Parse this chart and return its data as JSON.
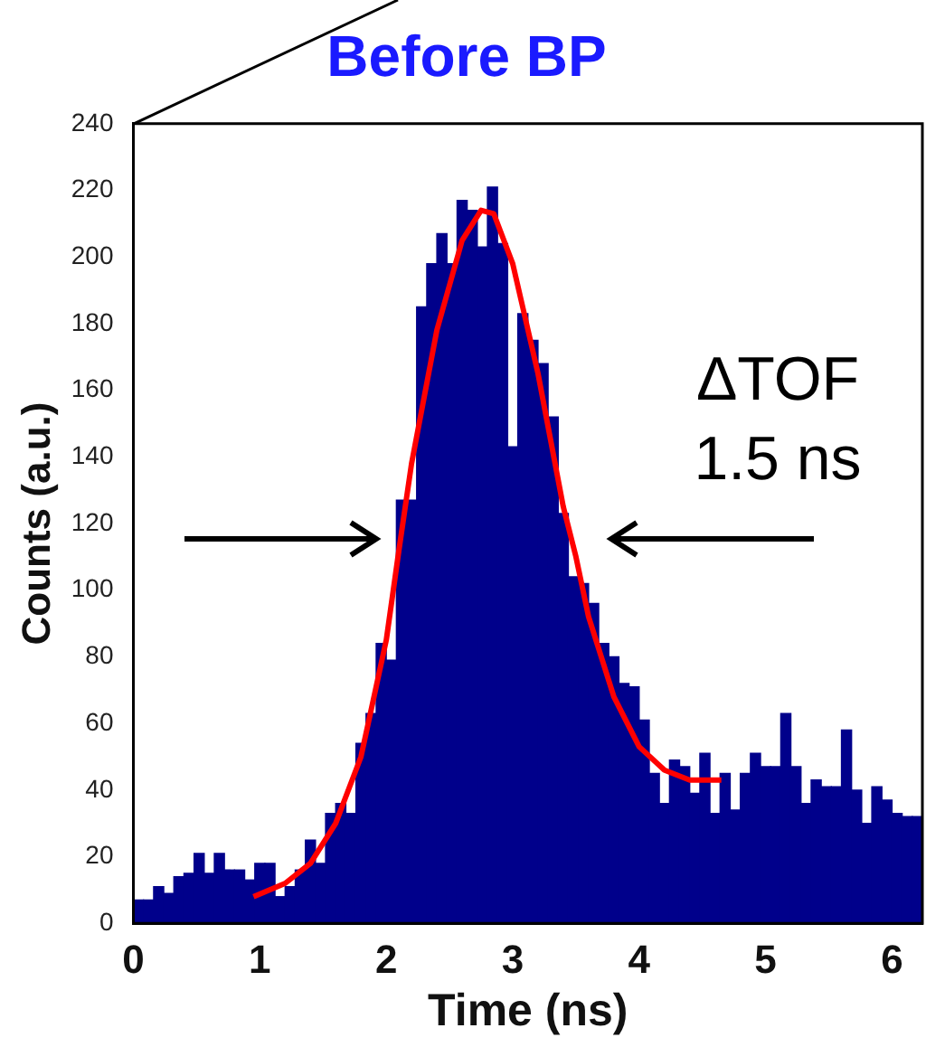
{
  "chart_data": {
    "type": "histogram",
    "title": "Before BP",
    "xlabel": "Time (ns)",
    "ylabel": "Counts (a.u.)",
    "bins": [
      0,
      0.08,
      0.16,
      0.24,
      0.32,
      0.4,
      0.48,
      0.56,
      0.64,
      0.72,
      0.8,
      0.88,
      0.96,
      1.04,
      1.12,
      1.2,
      1.28,
      1.36,
      1.44,
      1.52,
      1.6,
      1.68,
      1.76,
      1.84,
      1.92,
      2,
      2.08,
      2.16,
      2.24,
      2.32,
      2.4,
      2.48,
      2.56,
      2.64,
      2.72,
      2.8,
      2.88,
      2.96,
      3.04,
      3.12,
      3.2,
      3.28,
      3.36,
      3.44,
      3.52,
      3.6,
      3.68,
      3.76,
      3.84,
      3.92,
      4,
      4.08,
      4.16,
      4.24,
      4.32,
      4.4,
      4.48,
      4.56,
      4.64,
      4.72,
      4.8,
      4.88,
      4.96,
      5.04,
      5.12,
      5.2,
      5.28,
      5.36,
      5.44,
      5.52,
      5.6,
      5.68,
      5.76,
      5.84,
      5.92,
      6,
      6.08,
      6.16,
      6.24
    ],
    "color": "#00008b",
    "values": [
      7,
      7,
      11,
      9,
      14,
      15,
      21,
      15,
      21,
      16,
      16,
      13,
      18,
      18,
      8,
      11,
      16,
      25,
      18,
      33,
      36,
      33,
      54,
      63,
      84,
      79,
      127,
      127,
      185,
      198,
      207,
      198,
      217,
      214,
      203,
      221,
      204,
      143,
      183,
      175,
      168,
      152,
      123,
      104,
      102,
      96,
      84,
      80,
      72,
      71,
      61,
      45,
      36,
      49,
      47,
      39,
      51,
      33,
      45,
      34,
      45,
      51,
      47,
      47,
      63,
      47,
      36,
      43,
      41,
      41,
      58,
      40,
      30,
      41,
      37,
      33,
      32,
      32
    ],
    "series": [
      {
        "type": "line",
        "color": "#ff0000",
        "x": [
          0.95,
          1.2,
          1.4,
          1.6,
          1.8,
          2,
          2.1,
          2.2,
          2.4,
          2.6,
          2.75,
          2.85,
          3,
          3.2,
          3.4,
          3.5,
          3.6,
          3.8,
          4,
          4.2,
          4.4,
          4.65
        ],
        "values": [
          8,
          12,
          18,
          30,
          50,
          85,
          112,
          138,
          178,
          205,
          214,
          213,
          198,
          165,
          125,
          110,
          92,
          68,
          53,
          46,
          43,
          43
        ]
      }
    ],
    "xlim": [
      0,
      6.24
    ],
    "xticks": [
      0,
      1,
      2,
      3,
      4,
      5,
      6
    ],
    "ylim": [
      0,
      240
    ],
    "yticks": [
      0,
      20,
      40,
      60,
      80,
      100,
      120,
      140,
      160,
      180,
      200,
      220,
      240
    ],
    "grid": false,
    "legend": false,
    "marker": "none",
    "annotations": [
      "ΔTOF\n1.5 ns"
    ]
  }
}
